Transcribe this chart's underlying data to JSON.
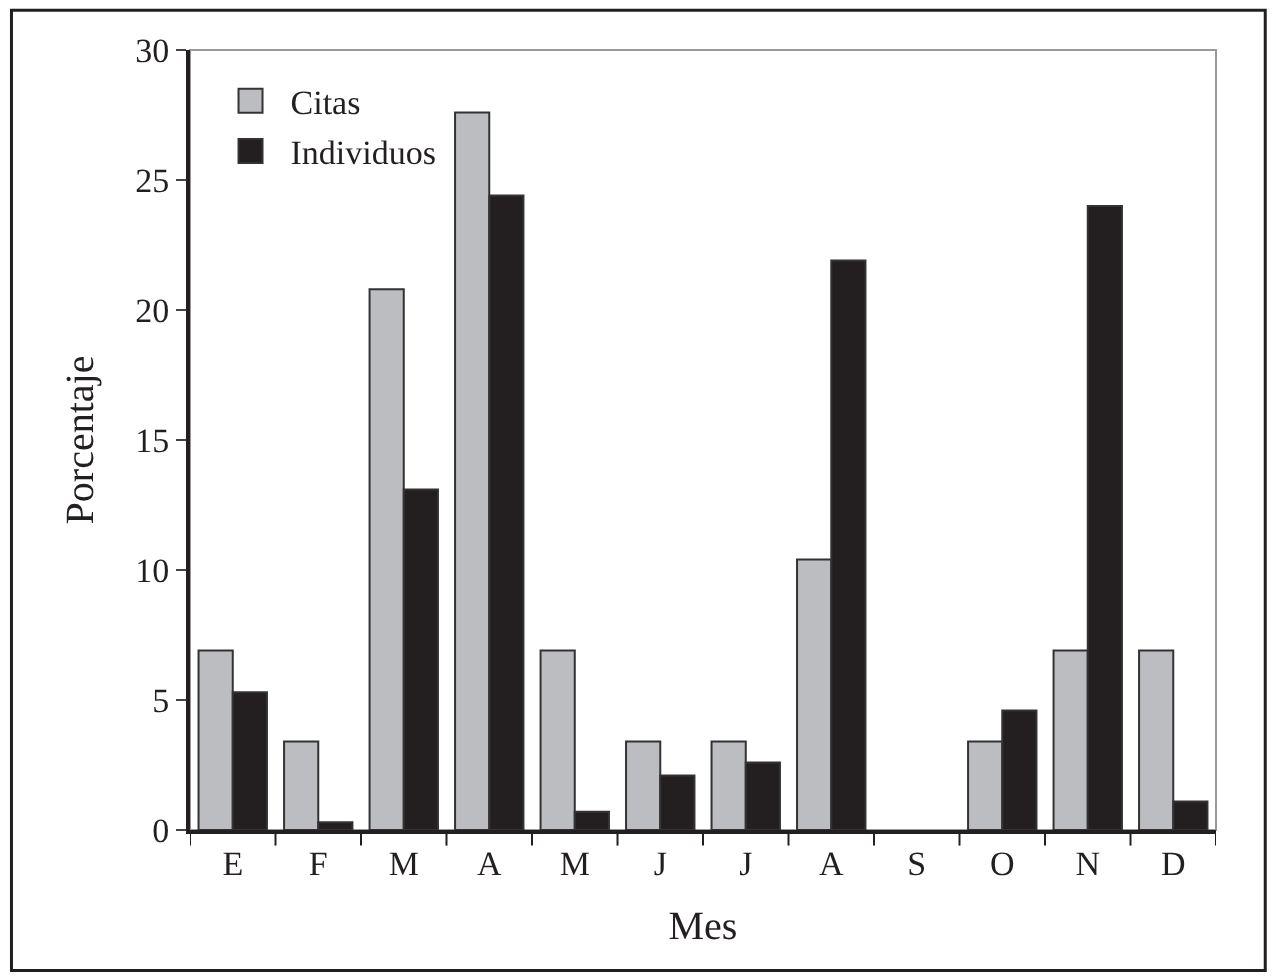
{
  "chart_data": {
    "type": "bar",
    "xlabel": "Mes",
    "ylabel": "Porcentaje",
    "categories": [
      "E",
      "F",
      "M",
      "A",
      "M",
      "J",
      "J",
      "A",
      "S",
      "O",
      "N",
      "D"
    ],
    "series": [
      {
        "name": "Citas",
        "color": "#bcbdc1",
        "values": [
          6.9,
          3.4,
          20.8,
          27.6,
          6.9,
          3.4,
          3.4,
          10.4,
          0,
          3.4,
          6.9,
          6.9
        ]
      },
      {
        "name": "Individuos",
        "color": "#231f20",
        "values": [
          5.3,
          0.3,
          13.1,
          24.4,
          0.7,
          2.1,
          2.6,
          21.9,
          0,
          4.6,
          24.0,
          1.1
        ]
      }
    ],
    "ylim": [
      0,
      30
    ],
    "yticks": [
      0,
      5,
      10,
      15,
      20,
      25,
      30
    ],
    "grid": false,
    "legend": "top left"
  }
}
